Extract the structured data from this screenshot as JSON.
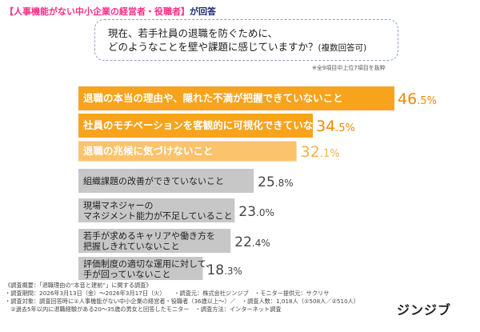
{
  "header": {
    "highlight": "【人事機能がない中小企業の経営者・役職者】",
    "suffix": "が回答"
  },
  "question": {
    "line1": "現在、若手社員の退職を防ぐために、",
    "line2": "どのようなことを壁や課題に感じていますか？",
    "note": "(複数回答可)"
  },
  "top_note": "※全9項目中上位7項目を抜粋",
  "colors": {
    "top_bars": "#f8a31c",
    "third_bar": "#fbc36b",
    "gray_bars": "#c7c7c7",
    "top_value_text": "#f08a00",
    "third_value_text": "#f6b04a",
    "gray_value_text": "#444444"
  },
  "chart_data": {
    "type": "bar",
    "orientation": "horizontal",
    "unit": "%",
    "categories": [
      [
        "退職の本当の理由や、隠れた不満が把握できていないこと"
      ],
      [
        "社員のモチベーションを客観的に可視化できていないこと"
      ],
      [
        "退職の兆候に気づけないこと"
      ],
      [
        "組織課題の改善ができていないこと"
      ],
      [
        "現場マネジャーの",
        "マネジメント能力が不足していること"
      ],
      [
        "若手が求めるキャリアや働き方を",
        "把握しきれていないこと"
      ],
      [
        "評価制度の適切な運用に対して、",
        "手が回っていないこと"
      ]
    ],
    "values": [
      46.5,
      34.5,
      32.1,
      25.8,
      23.0,
      22.4,
      18.3
    ],
    "value_labels": [
      [
        "46",
        ".5%"
      ],
      [
        "34",
        ".5%"
      ],
      [
        "32",
        ".1%"
      ],
      [
        "25",
        ".8%"
      ],
      [
        "23",
        ".0%"
      ],
      [
        "22",
        ".4%"
      ],
      [
        "18",
        ".3%"
      ]
    ]
  },
  "survey": {
    "lines": [
      "《調査概要：「退職理由の“本音と建前”」に関する調査》",
      "・調査期間：2026年3月13日（金）～2026年3月17日（火）　　・調査元：株式会社ジンジブ　・モニター提供元：サクリサ",
      "・調査対象：調査回答時に①人事機能がない中小企業の経営者・役職者（36歳以上～）／　・調査人数：1,018人（①508人／②510人）",
      "　②過去5年以内に退職経験がある20～35歳の男女と回答したモニター　・調査方法：インターネット調査"
    ]
  },
  "brand": "ジンジブ"
}
